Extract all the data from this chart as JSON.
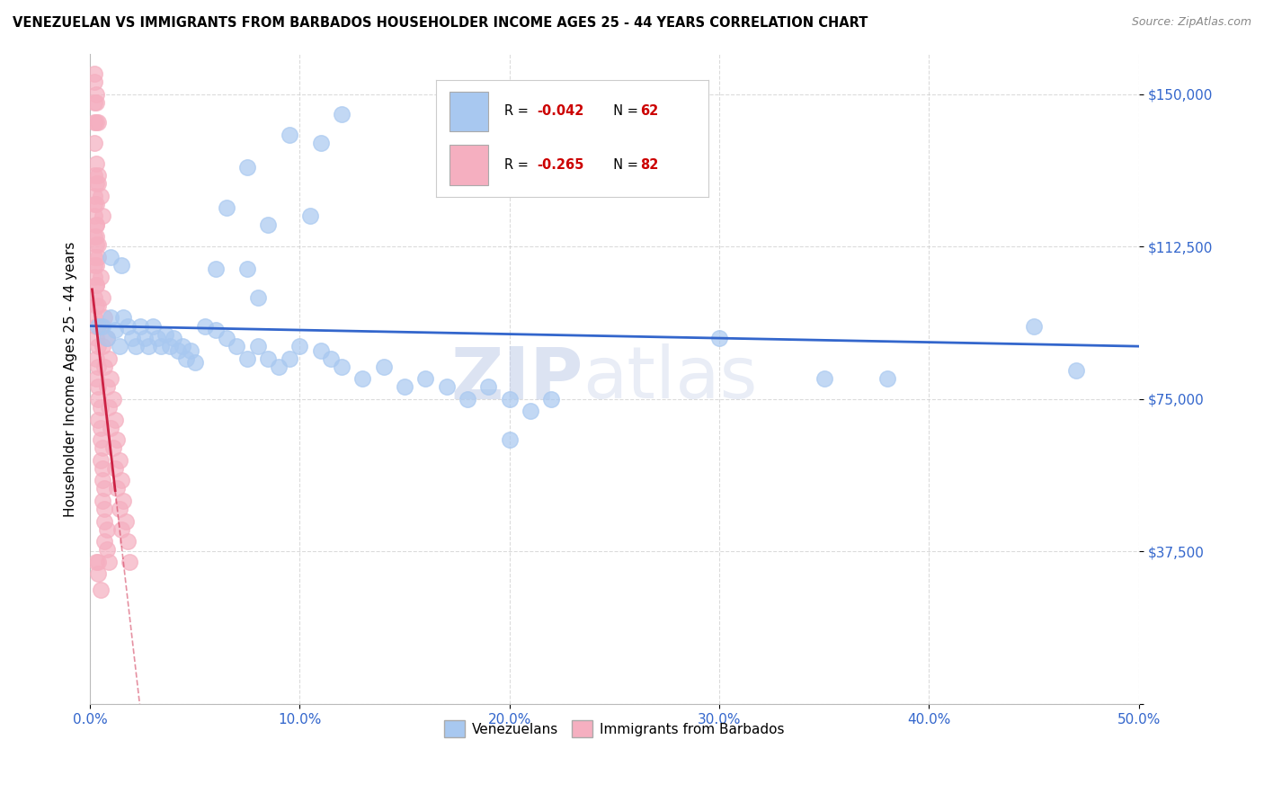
{
  "title": "VENEZUELAN VS IMMIGRANTS FROM BARBADOS HOUSEHOLDER INCOME AGES 25 - 44 YEARS CORRELATION CHART",
  "source": "Source: ZipAtlas.com",
  "ylabel": "Householder Income Ages 25 - 44 years",
  "yticks": [
    0,
    37500,
    75000,
    112500,
    150000
  ],
  "ytick_labels": [
    "",
    "$37,500",
    "$75,000",
    "$112,500",
    "$150,000"
  ],
  "xlim": [
    0.0,
    0.5
  ],
  "ylim": [
    0,
    160000
  ],
  "watermark": "ZIPatlas",
  "legend_label_blue": "Venezuelans",
  "legend_label_pink": "Immigrants from Barbados",
  "blue_color": "#a8c8f0",
  "pink_color": "#f5afc0",
  "blue_line_color": "#3366cc",
  "pink_line_color": "#cc2244",
  "blue_scatter": [
    [
      0.004,
      93000
    ],
    [
      0.006,
      93000
    ],
    [
      0.008,
      90000
    ],
    [
      0.01,
      95000
    ],
    [
      0.012,
      92000
    ],
    [
      0.014,
      88000
    ],
    [
      0.016,
      95000
    ],
    [
      0.018,
      93000
    ],
    [
      0.02,
      90000
    ],
    [
      0.022,
      88000
    ],
    [
      0.024,
      93000
    ],
    [
      0.026,
      90000
    ],
    [
      0.028,
      88000
    ],
    [
      0.03,
      93000
    ],
    [
      0.032,
      90000
    ],
    [
      0.034,
      88000
    ],
    [
      0.036,
      91000
    ],
    [
      0.038,
      88000
    ],
    [
      0.04,
      90000
    ],
    [
      0.042,
      87000
    ],
    [
      0.044,
      88000
    ],
    [
      0.046,
      85000
    ],
    [
      0.048,
      87000
    ],
    [
      0.05,
      84000
    ],
    [
      0.01,
      110000
    ],
    [
      0.015,
      108000
    ],
    [
      0.065,
      122000
    ],
    [
      0.075,
      132000
    ],
    [
      0.085,
      118000
    ],
    [
      0.095,
      140000
    ],
    [
      0.11,
      138000
    ],
    [
      0.12,
      145000
    ],
    [
      0.105,
      120000
    ],
    [
      0.075,
      107000
    ],
    [
      0.06,
      107000
    ],
    [
      0.08,
      100000
    ],
    [
      0.055,
      93000
    ],
    [
      0.06,
      92000
    ],
    [
      0.065,
      90000
    ],
    [
      0.07,
      88000
    ],
    [
      0.075,
      85000
    ],
    [
      0.08,
      88000
    ],
    [
      0.085,
      85000
    ],
    [
      0.09,
      83000
    ],
    [
      0.095,
      85000
    ],
    [
      0.1,
      88000
    ],
    [
      0.11,
      87000
    ],
    [
      0.115,
      85000
    ],
    [
      0.12,
      83000
    ],
    [
      0.13,
      80000
    ],
    [
      0.14,
      83000
    ],
    [
      0.15,
      78000
    ],
    [
      0.16,
      80000
    ],
    [
      0.17,
      78000
    ],
    [
      0.18,
      75000
    ],
    [
      0.19,
      78000
    ],
    [
      0.2,
      75000
    ],
    [
      0.21,
      72000
    ],
    [
      0.22,
      75000
    ],
    [
      0.2,
      65000
    ],
    [
      0.3,
      90000
    ],
    [
      0.35,
      80000
    ],
    [
      0.38,
      80000
    ],
    [
      0.45,
      93000
    ],
    [
      0.47,
      82000
    ]
  ],
  "pink_scatter": [
    [
      0.002,
      148000
    ],
    [
      0.003,
      143000
    ],
    [
      0.002,
      130000
    ],
    [
      0.003,
      128000
    ],
    [
      0.002,
      125000
    ],
    [
      0.003,
      123000
    ],
    [
      0.002,
      120000
    ],
    [
      0.003,
      118000
    ],
    [
      0.002,
      115000
    ],
    [
      0.003,
      113000
    ],
    [
      0.002,
      110000
    ],
    [
      0.003,
      108000
    ],
    [
      0.002,
      105000
    ],
    [
      0.003,
      103000
    ],
    [
      0.002,
      100000
    ],
    [
      0.003,
      98000
    ],
    [
      0.002,
      95000
    ],
    [
      0.003,
      93000
    ],
    [
      0.003,
      90000
    ],
    [
      0.004,
      88000
    ],
    [
      0.003,
      85000
    ],
    [
      0.004,
      83000
    ],
    [
      0.003,
      80000
    ],
    [
      0.004,
      78000
    ],
    [
      0.004,
      75000
    ],
    [
      0.005,
      73000
    ],
    [
      0.004,
      70000
    ],
    [
      0.005,
      68000
    ],
    [
      0.005,
      65000
    ],
    [
      0.006,
      63000
    ],
    [
      0.005,
      60000
    ],
    [
      0.006,
      58000
    ],
    [
      0.006,
      55000
    ],
    [
      0.007,
      53000
    ],
    [
      0.006,
      50000
    ],
    [
      0.007,
      48000
    ],
    [
      0.007,
      45000
    ],
    [
      0.008,
      43000
    ],
    [
      0.007,
      40000
    ],
    [
      0.008,
      38000
    ],
    [
      0.009,
      35000
    ],
    [
      0.004,
      35000
    ],
    [
      0.005,
      28000
    ],
    [
      0.003,
      150000
    ],
    [
      0.002,
      143000
    ],
    [
      0.004,
      130000
    ],
    [
      0.005,
      125000
    ],
    [
      0.006,
      120000
    ],
    [
      0.003,
      115000
    ],
    [
      0.004,
      110000
    ],
    [
      0.005,
      105000
    ],
    [
      0.006,
      100000
    ],
    [
      0.007,
      95000
    ],
    [
      0.008,
      90000
    ],
    [
      0.009,
      85000
    ],
    [
      0.01,
      80000
    ],
    [
      0.011,
      75000
    ],
    [
      0.012,
      70000
    ],
    [
      0.013,
      65000
    ],
    [
      0.014,
      60000
    ],
    [
      0.015,
      55000
    ],
    [
      0.016,
      50000
    ],
    [
      0.017,
      45000
    ],
    [
      0.018,
      40000
    ],
    [
      0.019,
      35000
    ],
    [
      0.002,
      153000
    ],
    [
      0.003,
      148000
    ],
    [
      0.004,
      143000
    ],
    [
      0.002,
      138000
    ],
    [
      0.003,
      133000
    ],
    [
      0.004,
      128000
    ],
    [
      0.002,
      123000
    ],
    [
      0.003,
      118000
    ],
    [
      0.004,
      113000
    ],
    [
      0.002,
      108000
    ],
    [
      0.003,
      103000
    ],
    [
      0.004,
      98000
    ],
    [
      0.005,
      93000
    ],
    [
      0.006,
      88000
    ],
    [
      0.007,
      83000
    ],
    [
      0.008,
      78000
    ],
    [
      0.009,
      73000
    ],
    [
      0.01,
      68000
    ],
    [
      0.011,
      63000
    ],
    [
      0.012,
      58000
    ],
    [
      0.013,
      53000
    ],
    [
      0.014,
      48000
    ],
    [
      0.015,
      43000
    ],
    [
      0.002,
      155000
    ],
    [
      0.003,
      35000
    ],
    [
      0.004,
      32000
    ]
  ]
}
